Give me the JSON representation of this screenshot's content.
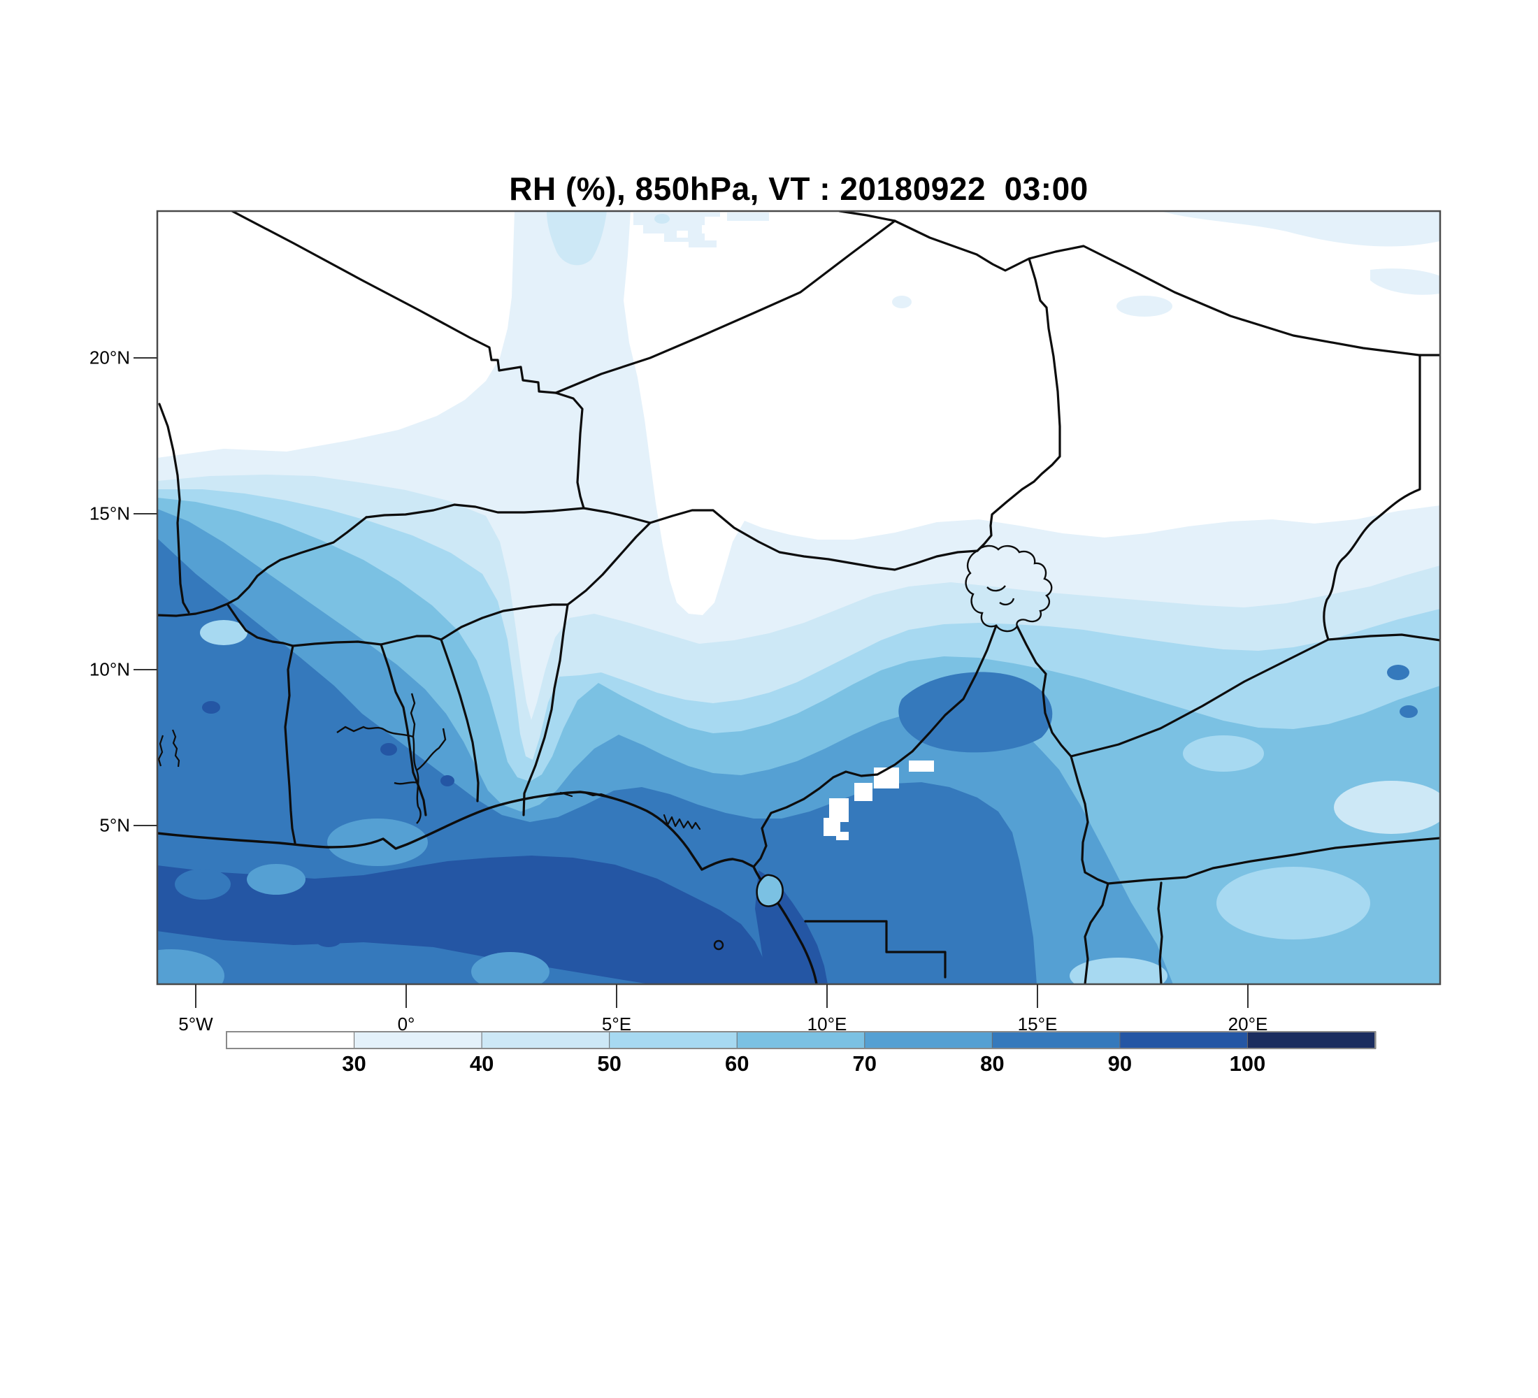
{
  "title": "RH (%), 850hPa, VT : 20180922  03:00",
  "axes": {
    "x_ticks": [
      "5°W",
      "0°",
      "5°E",
      "10°E",
      "15°E",
      "20°E"
    ],
    "y_ticks": [
      "20°N",
      "15°N",
      "10°N",
      "5°N"
    ]
  },
  "colorbar": {
    "boundary_labels": [
      "30",
      "40",
      "50",
      "60",
      "70",
      "80",
      "90",
      "100"
    ],
    "colors": [
      "#ffffff",
      "#e4f1fa",
      "#cde8f6",
      "#a7d9f1",
      "#7bc1e3",
      "#55a0d3",
      "#3579bc",
      "#2456a4",
      "#1b2d5f"
    ]
  },
  "chart_data": {
    "type": "heatmap",
    "title": "RH (%), 850hPa, VT : 20180922  03:00",
    "variable": "Relative humidity",
    "units": "%",
    "pressure_level": "850 hPa",
    "valid_time": "20180922 03:00",
    "xlabel": "",
    "ylabel": "",
    "x_tick_labels": [
      "5°W",
      "0°",
      "5°E",
      "10°E",
      "15°E",
      "20°E"
    ],
    "y_tick_labels": [
      "5°N",
      "10°N",
      "15°N",
      "20°N"
    ],
    "lon_range_deg": [
      -5.9,
      24.6
    ],
    "lat_range_deg": [
      0.0,
      24.8
    ],
    "grid": false,
    "legend_position": "bottom-colorbar",
    "contour_levels": [
      30,
      40,
      50,
      60,
      70,
      80,
      90,
      100
    ],
    "contour_colors": [
      "#ffffff",
      "#e4f1fa",
      "#cde8f6",
      "#a7d9f1",
      "#7bc1e3",
      "#55a0d3",
      "#3579bc",
      "#2456a4",
      "#1b2d5f"
    ],
    "approximate_rh_grid": {
      "lons_deg": [
        -5,
        0,
        5,
        10,
        15,
        20,
        24
      ],
      "lats_deg": [
        22,
        18,
        14,
        10,
        6,
        2
      ],
      "values": [
        [
          25,
          25,
          27,
          25,
          25,
          25,
          28
        ],
        [
          28,
          32,
          25,
          25,
          28,
          30,
          33
        ],
        [
          55,
          42,
          35,
          32,
          38,
          40,
          42
        ],
        [
          75,
          68,
          55,
          52,
          55,
          58,
          52
        ],
        [
          88,
          85,
          82,
          80,
          75,
          62,
          58
        ],
        [
          95,
          95,
          95,
          92,
          90,
          72,
          65
        ]
      ]
    },
    "notes_visible_features": [
      "white (<30%) dry zone across the Sahara in the upper third",
      "moisture increasing southward to >90% along the Gulf of Guinea coast",
      "pale dry tongues extending south near 3°E (Benin) and 10°E",
      "small white missing-data patches near the Cameroon highlands (~11-13°E, 6-8°N)",
      "country borders, Lake Volta, Lake Chad and Bioko island outlines drawn in black"
    ]
  }
}
